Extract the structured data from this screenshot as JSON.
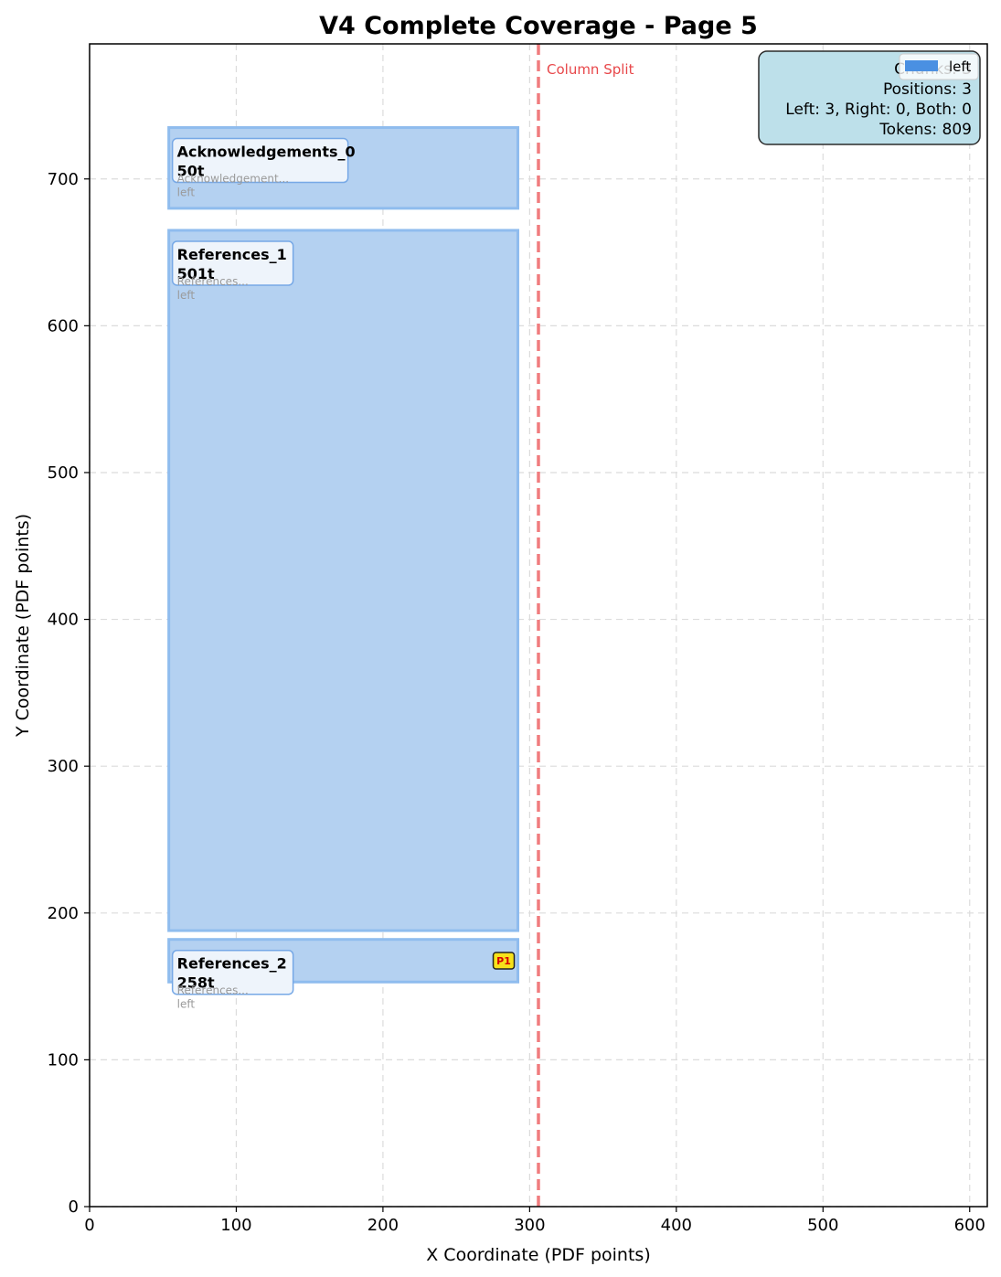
{
  "chart_data": {
    "type": "layout-boxes",
    "title": "V4 Complete Coverage - Page 5",
    "xlabel": "X Coordinate (PDF points)",
    "ylabel": "Y Coordinate (PDF points)",
    "xlim": [
      0,
      612
    ],
    "ylim": [
      0,
      792
    ],
    "xticks": [
      0,
      100,
      200,
      300,
      400,
      500,
      600
    ],
    "yticks": [
      0,
      100,
      200,
      300,
      400,
      500,
      600,
      700
    ],
    "grid": true,
    "column_split": {
      "x": 306,
      "label": "Column Split",
      "color": "#e8474a"
    },
    "chunks": [
      {
        "name": "Acknowledgements_0",
        "tokens": "50t",
        "preview": "Acknowledgement...",
        "side": "left",
        "x0": 54,
        "x1": 292,
        "y0": 680,
        "y1": 735,
        "marker": ""
      },
      {
        "name": "References_1",
        "tokens": "501t",
        "preview": "References...",
        "side": "left",
        "x0": 54,
        "x1": 292,
        "y0": 188,
        "y1": 665,
        "marker": ""
      },
      {
        "name": "References_2",
        "tokens": "258t",
        "preview": "References...",
        "side": "left",
        "x0": 54,
        "x1": 292,
        "y0": 153,
        "y1": 182,
        "marker": "P1"
      }
    ],
    "stats": {
      "lines": [
        "Chunks: 3",
        "Positions: 3",
        "Left: 3, Right: 0, Both: 0",
        "Tokens: 809"
      ]
    },
    "legend": {
      "entries": [
        {
          "label": "left",
          "color": "#4a90e2"
        }
      ],
      "placement": "top-right"
    },
    "colors": {
      "box_fill": "#b4d1f1",
      "box_edge": "#8fbcee",
      "stats_bg": "#bde0ea"
    }
  }
}
